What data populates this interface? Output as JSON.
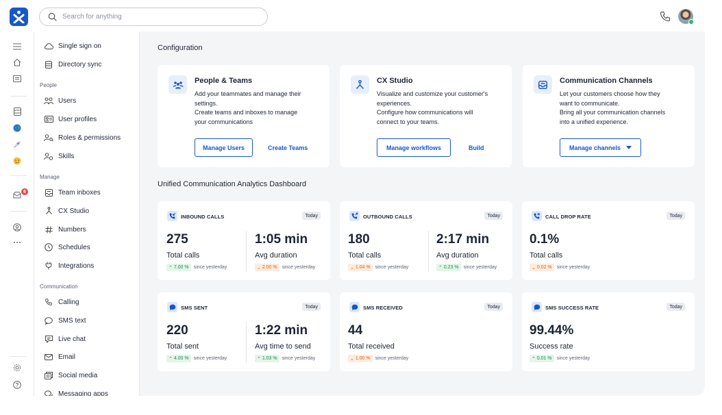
{
  "topbar": {
    "search_placeholder": "Search for anything"
  },
  "rail": {
    "notification_count": "6"
  },
  "subnav": {
    "items_top": [
      {
        "label": "Single sign on",
        "icon": "cloud-icon"
      },
      {
        "label": "Directory sync",
        "icon": "database-icon"
      }
    ],
    "sections": {
      "people": "People",
      "manage": "Manage",
      "communication": "Communication"
    },
    "people_items": [
      {
        "label": "Users",
        "icon": "users-icon"
      },
      {
        "label": "User profiles",
        "icon": "id-card-icon"
      },
      {
        "label": "Roles & permissions",
        "icon": "user-key-icon"
      },
      {
        "label": "Skills",
        "icon": "user-skill-icon"
      }
    ],
    "manage_items": [
      {
        "label": "Team inboxes",
        "icon": "inbox-icon"
      },
      {
        "label": "CX Studio",
        "icon": "flow-icon"
      },
      {
        "label": "Numbers",
        "icon": "hash-icon"
      },
      {
        "label": "Schedules",
        "icon": "clock-icon"
      },
      {
        "label": "Integrations",
        "icon": "plug-icon"
      }
    ],
    "communication_items": [
      {
        "label": "Calling",
        "icon": "phone-icon"
      },
      {
        "label": "SMS text",
        "icon": "sms-icon"
      },
      {
        "label": "Live chat",
        "icon": "chat-icon"
      },
      {
        "label": "Email",
        "icon": "mail-icon"
      },
      {
        "label": "Social media",
        "icon": "social-icon"
      },
      {
        "label": "Messaging apps",
        "icon": "messaging-icon"
      }
    ]
  },
  "main": {
    "config_title": "Configuration",
    "dashboard_title": "Unified Communication Analytics Dashboard",
    "config_cards": [
      {
        "title": "People & Teams",
        "desc": [
          "Add your teammates and manage their",
          "settings.",
          "Create teams and inboxes to manage",
          "your communications"
        ],
        "primary": "Manage Users",
        "secondary": "Create Teams"
      },
      {
        "title": "CX Studio",
        "desc": [
          "Visualize and customize your customer's",
          "experiences.",
          "Configure how communications will",
          "connect to your teams."
        ],
        "primary": "Manage workflows",
        "secondary": "Build"
      },
      {
        "title": "Communication Channels",
        "desc": [
          "Let your customers choose how they",
          "want to communicate.",
          "Bring all your communication channels",
          "into a unified experience."
        ],
        "primary": "Manage channels"
      }
    ],
    "stats": [
      {
        "label": "INBOUND CALLS",
        "today": "Today",
        "m1": {
          "value": "275",
          "caption": "Total calls",
          "delta": "7.00 %",
          "dir": "up",
          "since": "since yesterday"
        },
        "m2": {
          "value": "1:05 min",
          "caption": "Avg duration",
          "delta": "2.00 %",
          "dir": "down",
          "since": "since yesterday"
        }
      },
      {
        "label": "OUTBOUND CALLS",
        "today": "Today",
        "m1": {
          "value": "180",
          "caption": "Total calls",
          "delta": "1.04 %",
          "dir": "down",
          "since": "since yesterday"
        },
        "m2": {
          "value": "2:17 min",
          "caption": "Avg duration",
          "delta": "0.23 %",
          "dir": "up",
          "since": "since yesterday"
        }
      },
      {
        "label": "CALL DROP RATE",
        "today": "Today",
        "m1": {
          "value": "0.1%",
          "caption": "Total calls",
          "delta": "0.02 %",
          "dir": "down",
          "since": "since yesterday"
        }
      },
      {
        "label": "SMS SENT",
        "today": "Today",
        "m1": {
          "value": "220",
          "caption": "Total sent",
          "delta": "4.00 %",
          "dir": "up",
          "since": "since yesterday"
        },
        "m2": {
          "value": "1:22 min",
          "caption": "Avg time to send",
          "delta": "1.03 %",
          "dir": "up",
          "since": "since yesterday"
        }
      },
      {
        "label": "SMS RECEIVED",
        "today": "Today",
        "m1": {
          "value": "44",
          "caption": "Total received",
          "delta": "1.00 %",
          "dir": "down",
          "since": "since yesterday"
        }
      },
      {
        "label": "SMS SUCCESS RATE",
        "today": "Today",
        "m1": {
          "value": "99.44%",
          "caption": "Success rate",
          "delta": "0.01 %",
          "dir": "up",
          "since": "since yesterday"
        }
      }
    ]
  },
  "colors": {
    "brand": "#1757c9",
    "up": "#1d8a4a",
    "down": "#d9600f",
    "badge": "#e5484d"
  }
}
